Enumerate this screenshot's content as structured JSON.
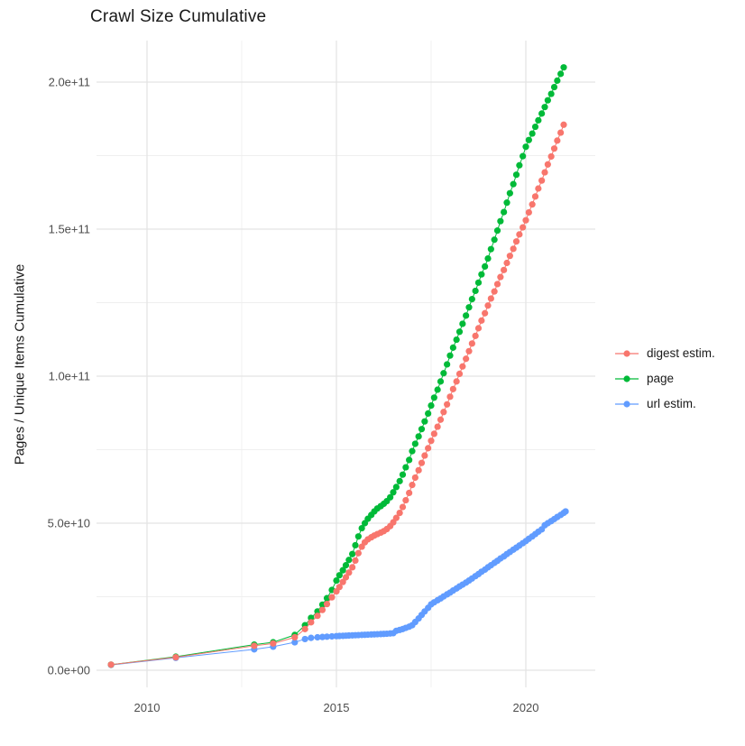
{
  "title": "Crawl Size Cumulative",
  "chart_data": {
    "type": "scatter",
    "title": "Crawl Size Cumulative",
    "xlabel": "",
    "ylabel": "Pages / Unique Items Cumulative",
    "value_scale": "1e9",
    "xlim": [
      2008.65,
      2021.85
    ],
    "ylim_e9": [
      -6,
      214
    ],
    "grid": "major and minor, light gray on white",
    "legend_position": "right",
    "x_ticks": {
      "values": [
        2010,
        2015,
        2020
      ],
      "labels": [
        "2010",
        "2015",
        "2020"
      ]
    },
    "x_minor": [
      2012.5,
      2017.5
    ],
    "y_ticks": {
      "values_e9": [
        0,
        50,
        100,
        150,
        200
      ],
      "labels": [
        "0.0e+00",
        "5.0e+10",
        "1.0e+11",
        "1.5e+11",
        "2.0e+11"
      ]
    },
    "y_minor_e9": [
      25,
      75,
      125,
      175
    ],
    "colors": {
      "digest_estim": "#F8766D",
      "page": "#00BA38",
      "url_estim": "#619CFF"
    },
    "series": [
      {
        "name": "digest estim.",
        "color": "#F8766D",
        "points_e9": [
          [
            2009.05,
            1.9
          ],
          [
            2010.76,
            4.4
          ],
          [
            2012.83,
            8.3
          ],
          [
            2013.33,
            9.1
          ],
          [
            2013.9,
            11.2
          ],
          [
            2014.17,
            14
          ],
          [
            2014.33,
            16.3
          ],
          [
            2014.5,
            18.5
          ],
          [
            2014.63,
            20.5
          ],
          [
            2014.75,
            22.5
          ],
          [
            2014.88,
            24.8
          ],
          [
            2015.0,
            26.8
          ],
          [
            2015.08,
            28.3
          ],
          [
            2015.17,
            30
          ],
          [
            2015.25,
            31.6
          ],
          [
            2015.33,
            33.2
          ],
          [
            2015.42,
            35
          ],
          [
            2015.5,
            37.3
          ],
          [
            2015.58,
            39.8
          ],
          [
            2015.67,
            42
          ],
          [
            2015.75,
            43.5
          ],
          [
            2015.83,
            44.5
          ],
          [
            2015.92,
            45.2
          ],
          [
            2016.0,
            45.8
          ],
          [
            2016.08,
            46.3
          ],
          [
            2016.17,
            46.8
          ],
          [
            2016.25,
            47.3
          ],
          [
            2016.33,
            48
          ],
          [
            2016.42,
            49
          ],
          [
            2016.5,
            50.3
          ],
          [
            2016.58,
            51.8
          ],
          [
            2016.67,
            53.5
          ],
          [
            2016.75,
            55.5
          ],
          [
            2016.83,
            57.8
          ],
          [
            2016.92,
            60.3
          ],
          [
            2017.0,
            63
          ],
          [
            2017.08,
            65.5
          ],
          [
            2017.17,
            68
          ],
          [
            2017.25,
            70.5
          ],
          [
            2017.33,
            73
          ],
          [
            2017.42,
            75.5
          ],
          [
            2017.5,
            78
          ],
          [
            2017.58,
            80.4
          ],
          [
            2017.67,
            82.8
          ],
          [
            2017.75,
            85.2
          ],
          [
            2017.83,
            87.8
          ],
          [
            2017.92,
            90.4
          ],
          [
            2018.0,
            93
          ],
          [
            2018.08,
            95.6
          ],
          [
            2018.17,
            98.2
          ],
          [
            2018.25,
            100.8
          ],
          [
            2018.33,
            103.3
          ],
          [
            2018.42,
            105.9
          ],
          [
            2018.5,
            108.5
          ],
          [
            2018.58,
            111.1
          ],
          [
            2018.67,
            113.7
          ],
          [
            2018.75,
            116.3
          ],
          [
            2018.83,
            118.9
          ],
          [
            2018.92,
            121.4
          ],
          [
            2019.0,
            124
          ],
          [
            2019.08,
            126.4
          ],
          [
            2019.17,
            128.8
          ],
          [
            2019.25,
            131.3
          ],
          [
            2019.33,
            133.7
          ],
          [
            2019.42,
            136.1
          ],
          [
            2019.5,
            138.5
          ],
          [
            2019.58,
            140.9
          ],
          [
            2019.67,
            143.3
          ],
          [
            2019.75,
            145.8
          ],
          [
            2019.83,
            148.2
          ],
          [
            2019.92,
            150.6
          ],
          [
            2020.0,
            153
          ],
          [
            2020.08,
            155.7
          ],
          [
            2020.17,
            158.4
          ],
          [
            2020.25,
            161.1
          ],
          [
            2020.33,
            163.8
          ],
          [
            2020.42,
            166.5
          ],
          [
            2020.5,
            169.3
          ],
          [
            2020.58,
            172
          ],
          [
            2020.67,
            174.7
          ],
          [
            2020.75,
            177.4
          ],
          [
            2020.83,
            180.1
          ],
          [
            2020.92,
            182.8
          ],
          [
            2021.0,
            185.5
          ]
        ]
      },
      {
        "name": "page",
        "color": "#00BA38",
        "points_e9": [
          [
            2009.05,
            1.9
          ],
          [
            2010.76,
            4.6
          ],
          [
            2012.83,
            8.7
          ],
          [
            2013.33,
            9.5
          ],
          [
            2013.9,
            12
          ],
          [
            2014.17,
            15.3
          ],
          [
            2014.33,
            17.8
          ],
          [
            2014.5,
            20
          ],
          [
            2014.63,
            22.3
          ],
          [
            2014.75,
            24.5
          ],
          [
            2014.88,
            27.3
          ],
          [
            2015.0,
            30.5
          ],
          [
            2015.08,
            32.3
          ],
          [
            2015.17,
            34
          ],
          [
            2015.25,
            35.7
          ],
          [
            2015.33,
            37.5
          ],
          [
            2015.42,
            39.5
          ],
          [
            2015.5,
            42.5
          ],
          [
            2015.58,
            45.5
          ],
          [
            2015.67,
            48.3
          ],
          [
            2015.75,
            50
          ],
          [
            2015.83,
            51.5
          ],
          [
            2015.92,
            52.8
          ],
          [
            2016.0,
            54
          ],
          [
            2016.08,
            55
          ],
          [
            2016.17,
            55.8
          ],
          [
            2016.25,
            56.6
          ],
          [
            2016.33,
            57.5
          ],
          [
            2016.42,
            58.8
          ],
          [
            2016.5,
            60.5
          ],
          [
            2016.58,
            62.3
          ],
          [
            2016.67,
            64.3
          ],
          [
            2016.75,
            66.5
          ],
          [
            2016.83,
            69
          ],
          [
            2016.92,
            71.5
          ],
          [
            2017.0,
            74.5
          ],
          [
            2017.08,
            77
          ],
          [
            2017.17,
            79.5
          ],
          [
            2017.25,
            82
          ],
          [
            2017.33,
            84.6
          ],
          [
            2017.42,
            87.3
          ],
          [
            2017.5,
            90
          ],
          [
            2017.58,
            92.7
          ],
          [
            2017.67,
            95.4
          ],
          [
            2017.75,
            98.2
          ],
          [
            2017.83,
            101
          ],
          [
            2017.92,
            104
          ],
          [
            2018.0,
            107
          ],
          [
            2018.08,
            109.7
          ],
          [
            2018.17,
            112.4
          ],
          [
            2018.25,
            115.1
          ],
          [
            2018.33,
            117.8
          ],
          [
            2018.42,
            120.6
          ],
          [
            2018.5,
            123.4
          ],
          [
            2018.58,
            126.2
          ],
          [
            2018.67,
            129
          ],
          [
            2018.75,
            131.8
          ],
          [
            2018.83,
            134.6
          ],
          [
            2018.92,
            137.3
          ],
          [
            2019.0,
            140
          ],
          [
            2019.08,
            143.2
          ],
          [
            2019.17,
            146.4
          ],
          [
            2019.25,
            149.5
          ],
          [
            2019.33,
            152.7
          ],
          [
            2019.42,
            155.8
          ],
          [
            2019.5,
            159
          ],
          [
            2019.58,
            162.2
          ],
          [
            2019.67,
            165.3
          ],
          [
            2019.75,
            168.5
          ],
          [
            2019.83,
            171.7
          ],
          [
            2019.92,
            174.8
          ],
          [
            2020.0,
            178
          ],
          [
            2020.08,
            180.3
          ],
          [
            2020.17,
            182.5
          ],
          [
            2020.25,
            184.8
          ],
          [
            2020.33,
            187
          ],
          [
            2020.42,
            189.3
          ],
          [
            2020.5,
            191.5
          ],
          [
            2020.58,
            193.8
          ],
          [
            2020.67,
            196
          ],
          [
            2020.75,
            198.3
          ],
          [
            2020.83,
            200.5
          ],
          [
            2020.92,
            202.8
          ],
          [
            2021.0,
            205
          ]
        ]
      },
      {
        "name": "url estim.",
        "color": "#619CFF",
        "points_e9": [
          [
            2009.05,
            1.8
          ],
          [
            2010.76,
            4.2
          ],
          [
            2012.83,
            7.1
          ],
          [
            2013.33,
            8
          ],
          [
            2013.9,
            9.5
          ],
          [
            2014.17,
            10.6
          ],
          [
            2014.33,
            11
          ],
          [
            2014.5,
            11.2
          ],
          [
            2014.63,
            11.3
          ],
          [
            2014.75,
            11.4
          ],
          [
            2014.88,
            11.5
          ],
          [
            2015.0,
            11.6
          ],
          [
            2015.08,
            11.65
          ],
          [
            2015.17,
            11.7
          ],
          [
            2015.25,
            11.75
          ],
          [
            2015.33,
            11.8
          ],
          [
            2015.42,
            11.85
          ],
          [
            2015.5,
            11.9
          ],
          [
            2015.58,
            11.95
          ],
          [
            2015.67,
            12
          ],
          [
            2015.75,
            12.05
          ],
          [
            2015.83,
            12.1
          ],
          [
            2015.92,
            12.15
          ],
          [
            2016.0,
            12.2
          ],
          [
            2016.08,
            12.25
          ],
          [
            2016.17,
            12.3
          ],
          [
            2016.25,
            12.35
          ],
          [
            2016.33,
            12.4
          ],
          [
            2016.42,
            12.5
          ],
          [
            2016.5,
            12.6
          ],
          [
            2016.58,
            13.4
          ],
          [
            2016.67,
            13.7
          ],
          [
            2016.75,
            14
          ],
          [
            2016.83,
            14.4
          ],
          [
            2016.92,
            14.8
          ],
          [
            2017.0,
            15.3
          ],
          [
            2017.08,
            16.4
          ],
          [
            2017.17,
            17.6
          ],
          [
            2017.25,
            18.8
          ],
          [
            2017.33,
            20
          ],
          [
            2017.42,
            21.2
          ],
          [
            2017.5,
            22.4
          ],
          [
            2017.58,
            23.1
          ],
          [
            2017.67,
            23.8
          ],
          [
            2017.75,
            24.4
          ],
          [
            2017.83,
            25.1
          ],
          [
            2017.92,
            25.8
          ],
          [
            2018.0,
            26.4
          ],
          [
            2018.08,
            27.1
          ],
          [
            2018.17,
            27.8
          ],
          [
            2018.25,
            28.5
          ],
          [
            2018.33,
            29.1
          ],
          [
            2018.42,
            29.8
          ],
          [
            2018.5,
            30.5
          ],
          [
            2018.58,
            31.2
          ],
          [
            2018.67,
            32
          ],
          [
            2018.75,
            32.7
          ],
          [
            2018.83,
            33.5
          ],
          [
            2018.92,
            34.2
          ],
          [
            2019.0,
            35
          ],
          [
            2019.08,
            35.7
          ],
          [
            2019.17,
            36.5
          ],
          [
            2019.25,
            37.2
          ],
          [
            2019.33,
            38
          ],
          [
            2019.42,
            38.7
          ],
          [
            2019.5,
            39.5
          ],
          [
            2019.58,
            40.2
          ],
          [
            2019.67,
            41
          ],
          [
            2019.75,
            41.7
          ],
          [
            2019.83,
            42.4
          ],
          [
            2019.92,
            43.2
          ],
          [
            2020.0,
            43.9
          ],
          [
            2020.08,
            44.7
          ],
          [
            2020.17,
            45.5
          ],
          [
            2020.25,
            46.3
          ],
          [
            2020.33,
            47.1
          ],
          [
            2020.42,
            47.9
          ],
          [
            2020.5,
            49.3
          ],
          [
            2020.58,
            50
          ],
          [
            2020.67,
            50.7
          ],
          [
            2020.75,
            51.4
          ],
          [
            2020.83,
            52.1
          ],
          [
            2020.92,
            52.8
          ],
          [
            2021.0,
            53.5
          ],
          [
            2021.05,
            54
          ]
        ]
      }
    ]
  }
}
